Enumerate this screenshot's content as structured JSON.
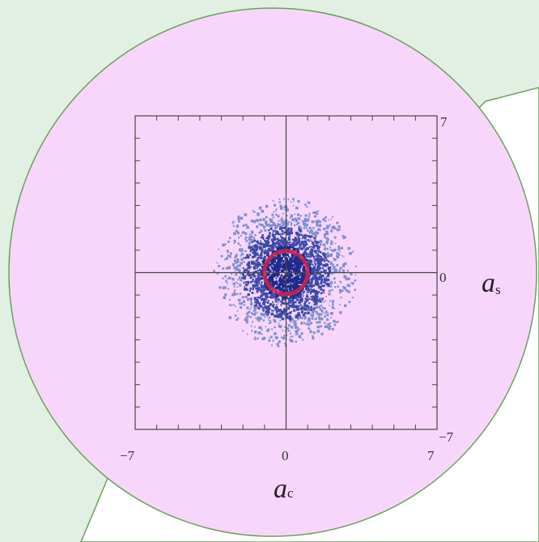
{
  "colors": {
    "background_left": "#e2f0e3",
    "background_right": "#ffffff",
    "circle_fill": "#f8d6fb",
    "outline_green": "#6aa05a",
    "cloud_dark": "#1f2a8a",
    "cloud_mid": "#3a4aa8",
    "cloud_light": "#7f8ed0",
    "ring_red": "#d0254a",
    "axes": "#444444"
  },
  "chart_data": {
    "type": "scatter",
    "description_shape": "phase-space density of quadrature amplitudes; dense blue cloud centred at origin with red ring of radius ~1",
    "xlabel": {
      "main": "a",
      "sub": "c"
    },
    "ylabel": {
      "main": "a",
      "sub": "s"
    },
    "xlim": [
      -7,
      7
    ],
    "ylim": [
      -7,
      7
    ],
    "x_tick_labels": [
      "−7",
      "0",
      "7"
    ],
    "y_tick_labels": [
      "7",
      "0",
      "−7"
    ],
    "x_ticks": [
      -7,
      0,
      7
    ],
    "y_ticks": [
      7,
      0,
      -7
    ],
    "grid": false,
    "legend": "none",
    "cloud": {
      "center": [
        0,
        0
      ],
      "sigma": 1.3,
      "extent": 2.9
    },
    "ring": {
      "center": [
        0,
        0
      ],
      "radius": 1.0
    }
  }
}
